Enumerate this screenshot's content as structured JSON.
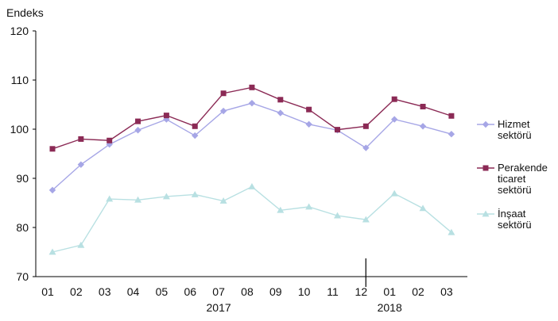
{
  "chart_data": {
    "type": "line",
    "ylabel": "Endeks",
    "ylim": [
      70,
      120
    ],
    "yticks": [
      70,
      80,
      90,
      100,
      110,
      120
    ],
    "categories": [
      "01",
      "02",
      "03",
      "04",
      "05",
      "06",
      "07",
      "08",
      "09",
      "10",
      "11",
      "12",
      "01",
      "02",
      "03"
    ],
    "year_labels": [
      {
        "label": "2017",
        "category_index": 6
      },
      {
        "label": "2018",
        "category_index": 12
      }
    ],
    "grid": false,
    "legend_position": "right",
    "series": [
      {
        "name": "Hizmet sektörü",
        "legend_lines": [
          "Hizmet",
          "sektörü"
        ],
        "color": "#a6a6e6",
        "marker": "diamond",
        "values": [
          87.6,
          92.8,
          96.9,
          99.8,
          102.0,
          98.7,
          103.7,
          105.3,
          103.3,
          101.0,
          99.8,
          96.2,
          102.0,
          100.6,
          99.0
        ]
      },
      {
        "name": "Perakende ticaret sektörü",
        "legend_lines": [
          "Perakende",
          "ticaret",
          "sektörü"
        ],
        "color": "#8b2a55",
        "marker": "square",
        "values": [
          96.0,
          98.0,
          97.7,
          101.6,
          102.8,
          100.6,
          107.3,
          108.5,
          106.0,
          104.0,
          99.9,
          100.6,
          106.1,
          104.6,
          102.7
        ]
      },
      {
        "name": "İnşaat sektörü",
        "legend_lines": [
          "İnşaat",
          "sektörü"
        ],
        "color": "#b8e0e2",
        "marker": "triangle",
        "values": [
          75.0,
          76.4,
          85.8,
          85.6,
          86.3,
          86.7,
          85.4,
          88.3,
          83.5,
          84.2,
          82.4,
          81.6,
          86.9,
          83.9,
          79.0
        ]
      }
    ]
  }
}
